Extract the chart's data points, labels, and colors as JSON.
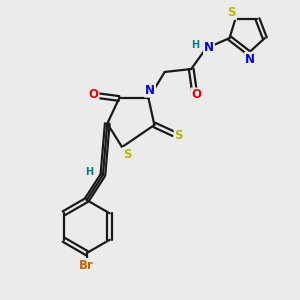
{
  "bg_color": "#ebebeb",
  "bond_color": "#1a1a1a",
  "bond_lw": 1.6,
  "atom_colors": {
    "S": "#b8b800",
    "N": "#0000ee",
    "O": "#ee0000",
    "Br": "#cc6600",
    "H": "#008080",
    "C": "#1a1a1a"
  },
  "font_size_atom": 8.5,
  "font_size_small": 7.0,
  "xlim": [
    0,
    10
  ],
  "ylim": [
    0,
    10
  ]
}
